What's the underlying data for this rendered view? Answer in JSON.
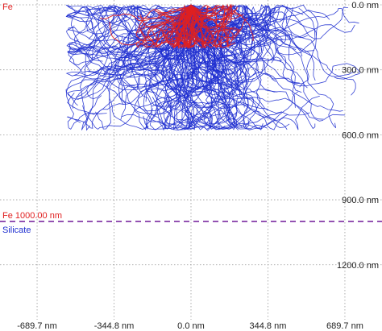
{
  "window": {
    "background": "#ffffff",
    "grid_color": "#9a9a9a",
    "boundary_color": "#7a2aa0"
  },
  "layers": {
    "top_label": "Fe",
    "boundary_label": "Fe 1000.00 nm",
    "bottom_label": "Silicate",
    "fe_color": "#e02020",
    "silicate_color": "#2030d0"
  },
  "chart_data": {
    "type": "scatter",
    "title": "",
    "xlabel": "",
    "ylabel": "",
    "x_unit": "nm",
    "y_unit": "nm",
    "xlim": [
      -856,
      856
    ],
    "ylim": [
      0,
      1450
    ],
    "y_inverted": true,
    "grid": true,
    "x_ticks": [
      -689.7,
      -344.8,
      0.0,
      344.8,
      689.7
    ],
    "x_tick_labels": [
      "-689.7 nm",
      "-344.8 nm",
      "0.0 nm",
      "344.8 nm",
      "689.7 nm"
    ],
    "y_ticks": [
      0.0,
      300.0,
      600.0,
      900.0,
      1200.0
    ],
    "y_tick_labels": [
      "0.0 nm",
      "300.0 nm",
      "600.0 nm",
      "900.0 nm",
      "1200.0 nm"
    ],
    "boundary_depth": 1000.0,
    "series": [
      {
        "name": "Fe",
        "color": "#e02020",
        "trajectories": 60,
        "approx_extent": {
          "x_min": -420,
          "x_max": 500,
          "depth_max": 200
        }
      },
      {
        "name": "Silicate",
        "color": "#2030d0",
        "trajectories": 220,
        "approx_extent": {
          "x_min": -560,
          "x_max": 760,
          "depth_max": 580
        }
      }
    ]
  }
}
